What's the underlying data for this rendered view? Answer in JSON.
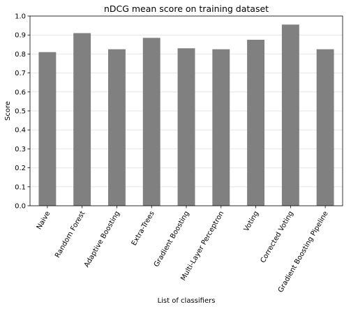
{
  "chart_data": {
    "type": "bar",
    "title": "nDCG mean score on training dataset",
    "xlabel": "List of classifiers",
    "ylabel": "Score",
    "ylim": [
      0,
      1.0
    ],
    "yticks": [
      "0.0",
      "0.1",
      "0.2",
      "0.3",
      "0.4",
      "0.5",
      "0.6",
      "0.7",
      "0.8",
      "0.9",
      "1.0"
    ],
    "grid": true,
    "bar_color": "#808080",
    "categories": [
      "Naive",
      "Random Forest",
      "Adaptive Boosting",
      "Extra-Trees",
      "Gradient Boosting",
      "Multi-Layer Perceptron",
      "Voting",
      "Corrected Voting",
      "Gradient Boosting Pipeline"
    ],
    "values": [
      0.81,
      0.91,
      0.825,
      0.885,
      0.83,
      0.825,
      0.875,
      0.955,
      0.825
    ]
  }
}
